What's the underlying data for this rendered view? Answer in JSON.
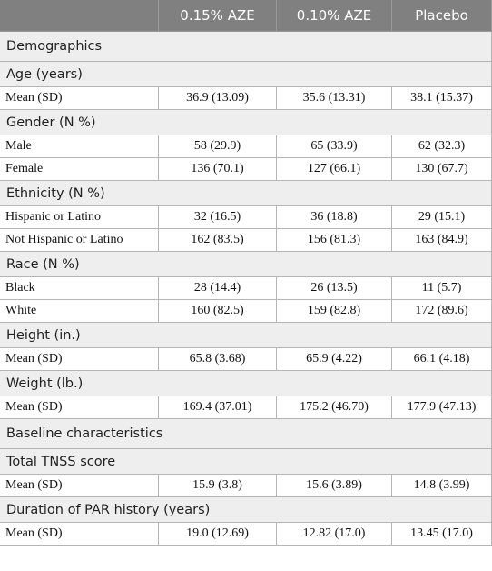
{
  "table": {
    "header": [
      "0.15% AZE",
      "0.10% AZE",
      "Placebo"
    ],
    "sections": [
      {
        "title": "Demographics",
        "groups": [
          {
            "title": "Age (years)",
            "rows": [
              {
                "label": "Mean (SD)",
                "cells": [
                  "36.9 (13.09)",
                  "35.6 (13.31)",
                  "38.1 (15.37)"
                ]
              }
            ]
          },
          {
            "title": "Gender (N %)",
            "rows": [
              {
                "label": "Male",
                "cells": [
                  "58 (29.9)",
                  "65 (33.9)",
                  "62 (32.3)"
                ]
              },
              {
                "label": "Female",
                "cells": [
                  "136 (70.1)",
                  "127 (66.1)",
                  "130 (67.7)"
                ]
              }
            ]
          },
          {
            "title": "Ethnicity (N %)",
            "rows": [
              {
                "label": "Hispanic or Latino",
                "cells": [
                  "32 (16.5)",
                  "36 (18.8)",
                  "29 (15.1)"
                ]
              },
              {
                "label": "Not Hispanic or Latino",
                "cells": [
                  "162 (83.5)",
                  "156 (81.3)",
                  "163 (84.9)"
                ]
              }
            ]
          },
          {
            "title": "Race (N %)",
            "rows": [
              {
                "label": "Black",
                "cells": [
                  "28 (14.4)",
                  "26 (13.5)",
                  "11 (5.7)"
                ]
              },
              {
                "label": "White",
                "cells": [
                  "160 (82.5)",
                  "159 (82.8)",
                  "172 (89.6)"
                ]
              }
            ]
          },
          {
            "title": "Height (in.)",
            "rows": [
              {
                "label": "Mean (SD)",
                "cells": [
                  "65.8 (3.68)",
                  "65.9 (4.22)",
                  "66.1 (4.18)"
                ]
              }
            ]
          },
          {
            "title": "Weight (lb.)",
            "rows": [
              {
                "label": "Mean (SD)",
                "cells": [
                  "169.4 (37.01)",
                  "175.2 (46.70)",
                  "177.9 (47.13)"
                ]
              }
            ]
          }
        ]
      },
      {
        "title": "Baseline characteristics",
        "groups": [
          {
            "title": "Total TNSS score",
            "rows": [
              {
                "label": "Mean (SD)",
                "cells": [
                  "15.9 (3.8)",
                  "15.6 (3.89)",
                  "14.8 (3.99)"
                ]
              }
            ]
          },
          {
            "title": "Duration of PAR history (years)",
            "rows": [
              {
                "label": "Mean (SD)",
                "cells": [
                  "19.0 (12.69)",
                  "12.82 (17.0)",
                  "13.45 (17.0)"
                ]
              }
            ]
          }
        ]
      }
    ]
  }
}
